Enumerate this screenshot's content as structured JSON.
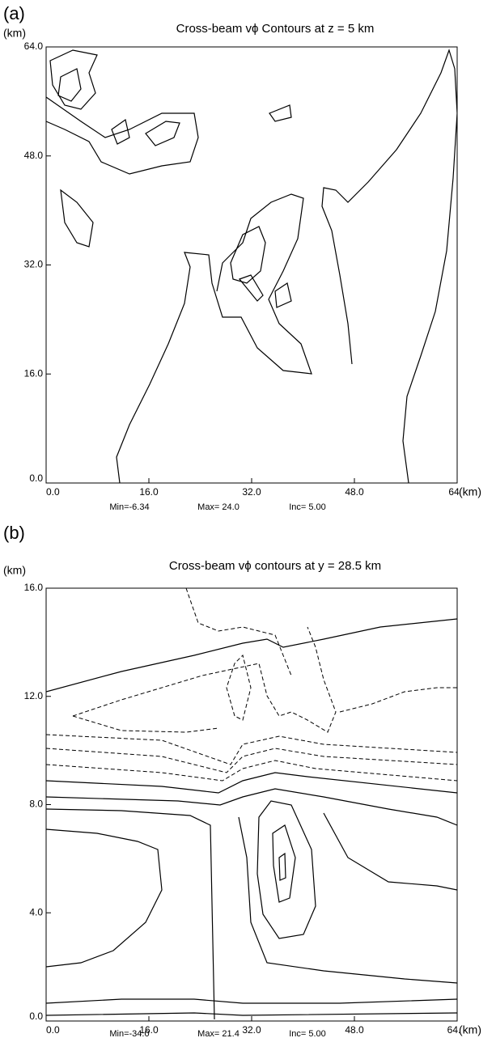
{
  "chart_data": [
    {
      "type": "contour",
      "panel": "(a)",
      "title": "Cross-beam vϕ Contours at z = 5 km",
      "xlabel": "(km)",
      "ylabel": "(km)",
      "xlim": [
        0,
        64
      ],
      "ylim": [
        0,
        64
      ],
      "xticks": [
        {
          "value": 0,
          "label": "0.0"
        },
        {
          "value": 16,
          "label": "16.0"
        },
        {
          "value": 32,
          "label": "32.0"
        },
        {
          "value": 48,
          "label": "48.0"
        },
        64
      ],
      "yticks": [
        {
          "value": 0,
          "label": "0.0"
        },
        {
          "value": 16,
          "label": "16.0"
        },
        {
          "value": 32,
          "label": "32.0"
        },
        {
          "value": 48,
          "label": "48.0"
        },
        {
          "value": 64,
          "label": "64.0"
        }
      ],
      "annotations": [
        "Min=-6.34",
        "Max= 24.0",
        "Inc= 5.00"
      ]
    },
    {
      "type": "contour",
      "panel": "(b)",
      "title": "Cross-beam  vϕ contours at y = 28.5 km",
      "xlabel": "(km)",
      "ylabel": "(km)",
      "xlim": [
        0,
        64
      ],
      "ylim": [
        0,
        16
      ],
      "xticks": [
        {
          "value": 0,
          "label": "0.0"
        },
        {
          "value": 16,
          "label": "16.0"
        },
        {
          "value": 32,
          "label": "32.0"
        },
        {
          "value": 48,
          "label": "48.0"
        },
        {
          "value": 64,
          "label": "64."
        }
      ],
      "yticks": [
        {
          "value": 0,
          "label": "0.0"
        },
        {
          "value": 4,
          "label": "4.0"
        },
        {
          "value": 8,
          "label": "8.0"
        },
        {
          "value": 12,
          "label": "12.0"
        },
        {
          "value": 16,
          "label": "16.0"
        }
      ],
      "annotations": [
        "Min=-34.0",
        "Max= 21.4",
        "Inc= 5.00"
      ]
    }
  ]
}
